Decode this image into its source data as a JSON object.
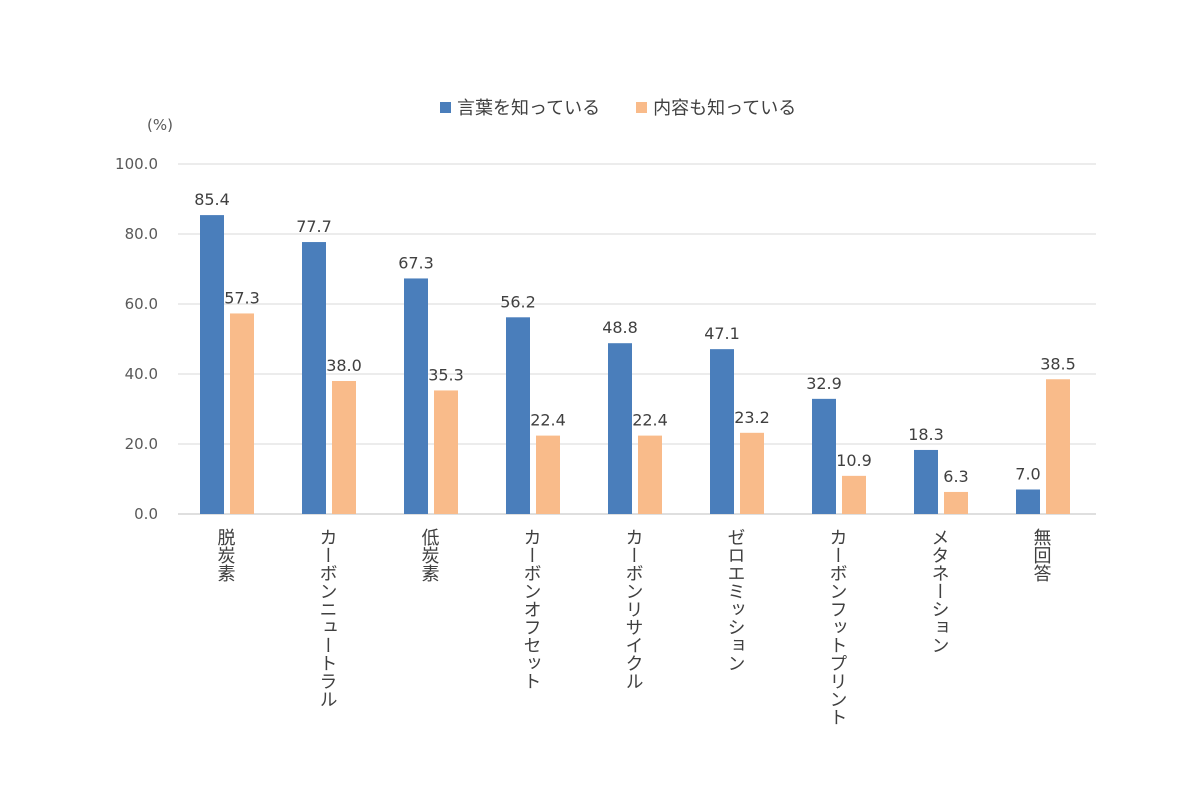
{
  "chart_data": {
    "type": "bar",
    "unit_label": "(%)",
    "categories": [
      "脱炭素",
      "カーボンニュートラル",
      "低炭素",
      "カーボンオフセット",
      "カーボンリサイクル",
      "ゼロエミッション",
      "カーボンフットプリント",
      "メタネーション",
      "無回答"
    ],
    "series": [
      {
        "name": "言葉を知っている",
        "color": "#4a7ebb",
        "values": [
          85.4,
          77.7,
          67.3,
          56.2,
          48.8,
          47.1,
          32.9,
          18.3,
          7.0
        ]
      },
      {
        "name": "内容も知っている",
        "color": "#f9bb8a",
        "values": [
          57.3,
          38.0,
          35.3,
          22.4,
          22.4,
          23.2,
          10.9,
          6.3,
          38.5
        ]
      }
    ],
    "y_ticks": [
      "0.0",
      "20.0",
      "40.0",
      "60.0",
      "80.0",
      "100.0"
    ],
    "ylim": [
      0,
      100
    ],
    "grid": true,
    "legend_position": "top"
  }
}
